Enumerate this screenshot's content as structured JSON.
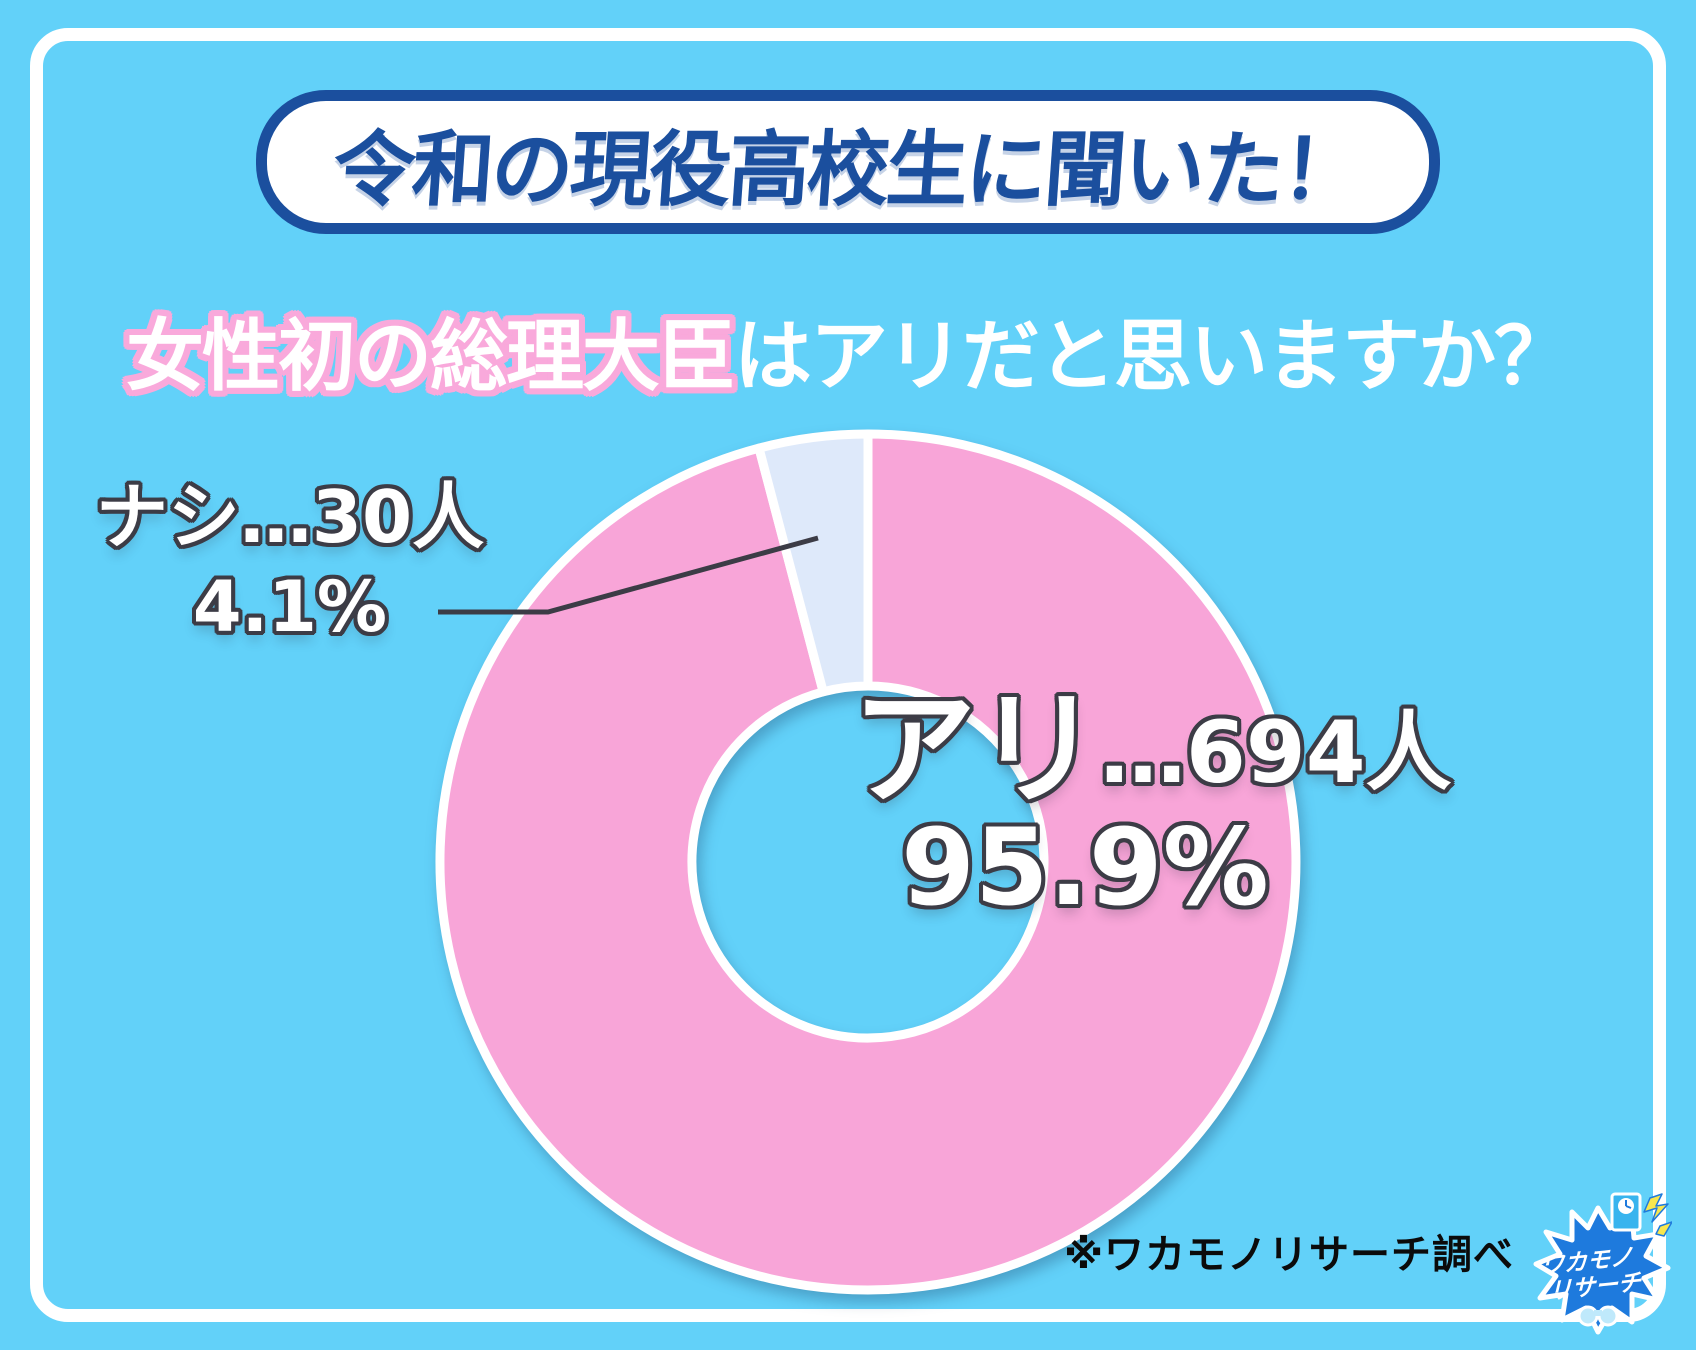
{
  "banner": {
    "title": "令和の現役高校生に聞いた！"
  },
  "question": {
    "highlight": "女性初の総理大臣",
    "rest": "はアリだと思いますか？"
  },
  "chart_data": {
    "type": "pie",
    "subtype": "donut",
    "title": "女性初の総理大臣はアリだと思いますか？",
    "unit": "人",
    "start_angle_deg": 0,
    "direction": "clockwise",
    "legend_position": "none",
    "segments": [
      {
        "key": "ari",
        "label": "アリ",
        "count": 694,
        "percent": 95.9,
        "color": "#F8A5D8"
      },
      {
        "key": "nashi",
        "label": "ナシ",
        "count": 30,
        "percent": 4.1,
        "color": "#DEE9FA"
      }
    ]
  },
  "callouts": {
    "nashi": {
      "line1": "ナシ…30人",
      "percent": "4.1%"
    },
    "ari": {
      "main": "アリ",
      "count": "…694人",
      "percent": "95.9%"
    }
  },
  "footer": {
    "note": "※ワカモノリサーチ調べ"
  },
  "logo": {
    "line1": "ワカモノ",
    "line2": "リサーチ"
  },
  "colors": {
    "background": "#62D1F9",
    "frame": "#FFFFFF",
    "banner_blue": "#1B4F9E",
    "pink": "#F8A5D8",
    "light_slice": "#DEE9FA",
    "title_outline_pink": "#F9A9DB",
    "label_outline": "#3C3C46",
    "leader_line": "#3C3C46",
    "note_text": "#0B0B0B",
    "logo_blue": "#1E7ADD",
    "lightning_yellow": "#F7E64E"
  }
}
